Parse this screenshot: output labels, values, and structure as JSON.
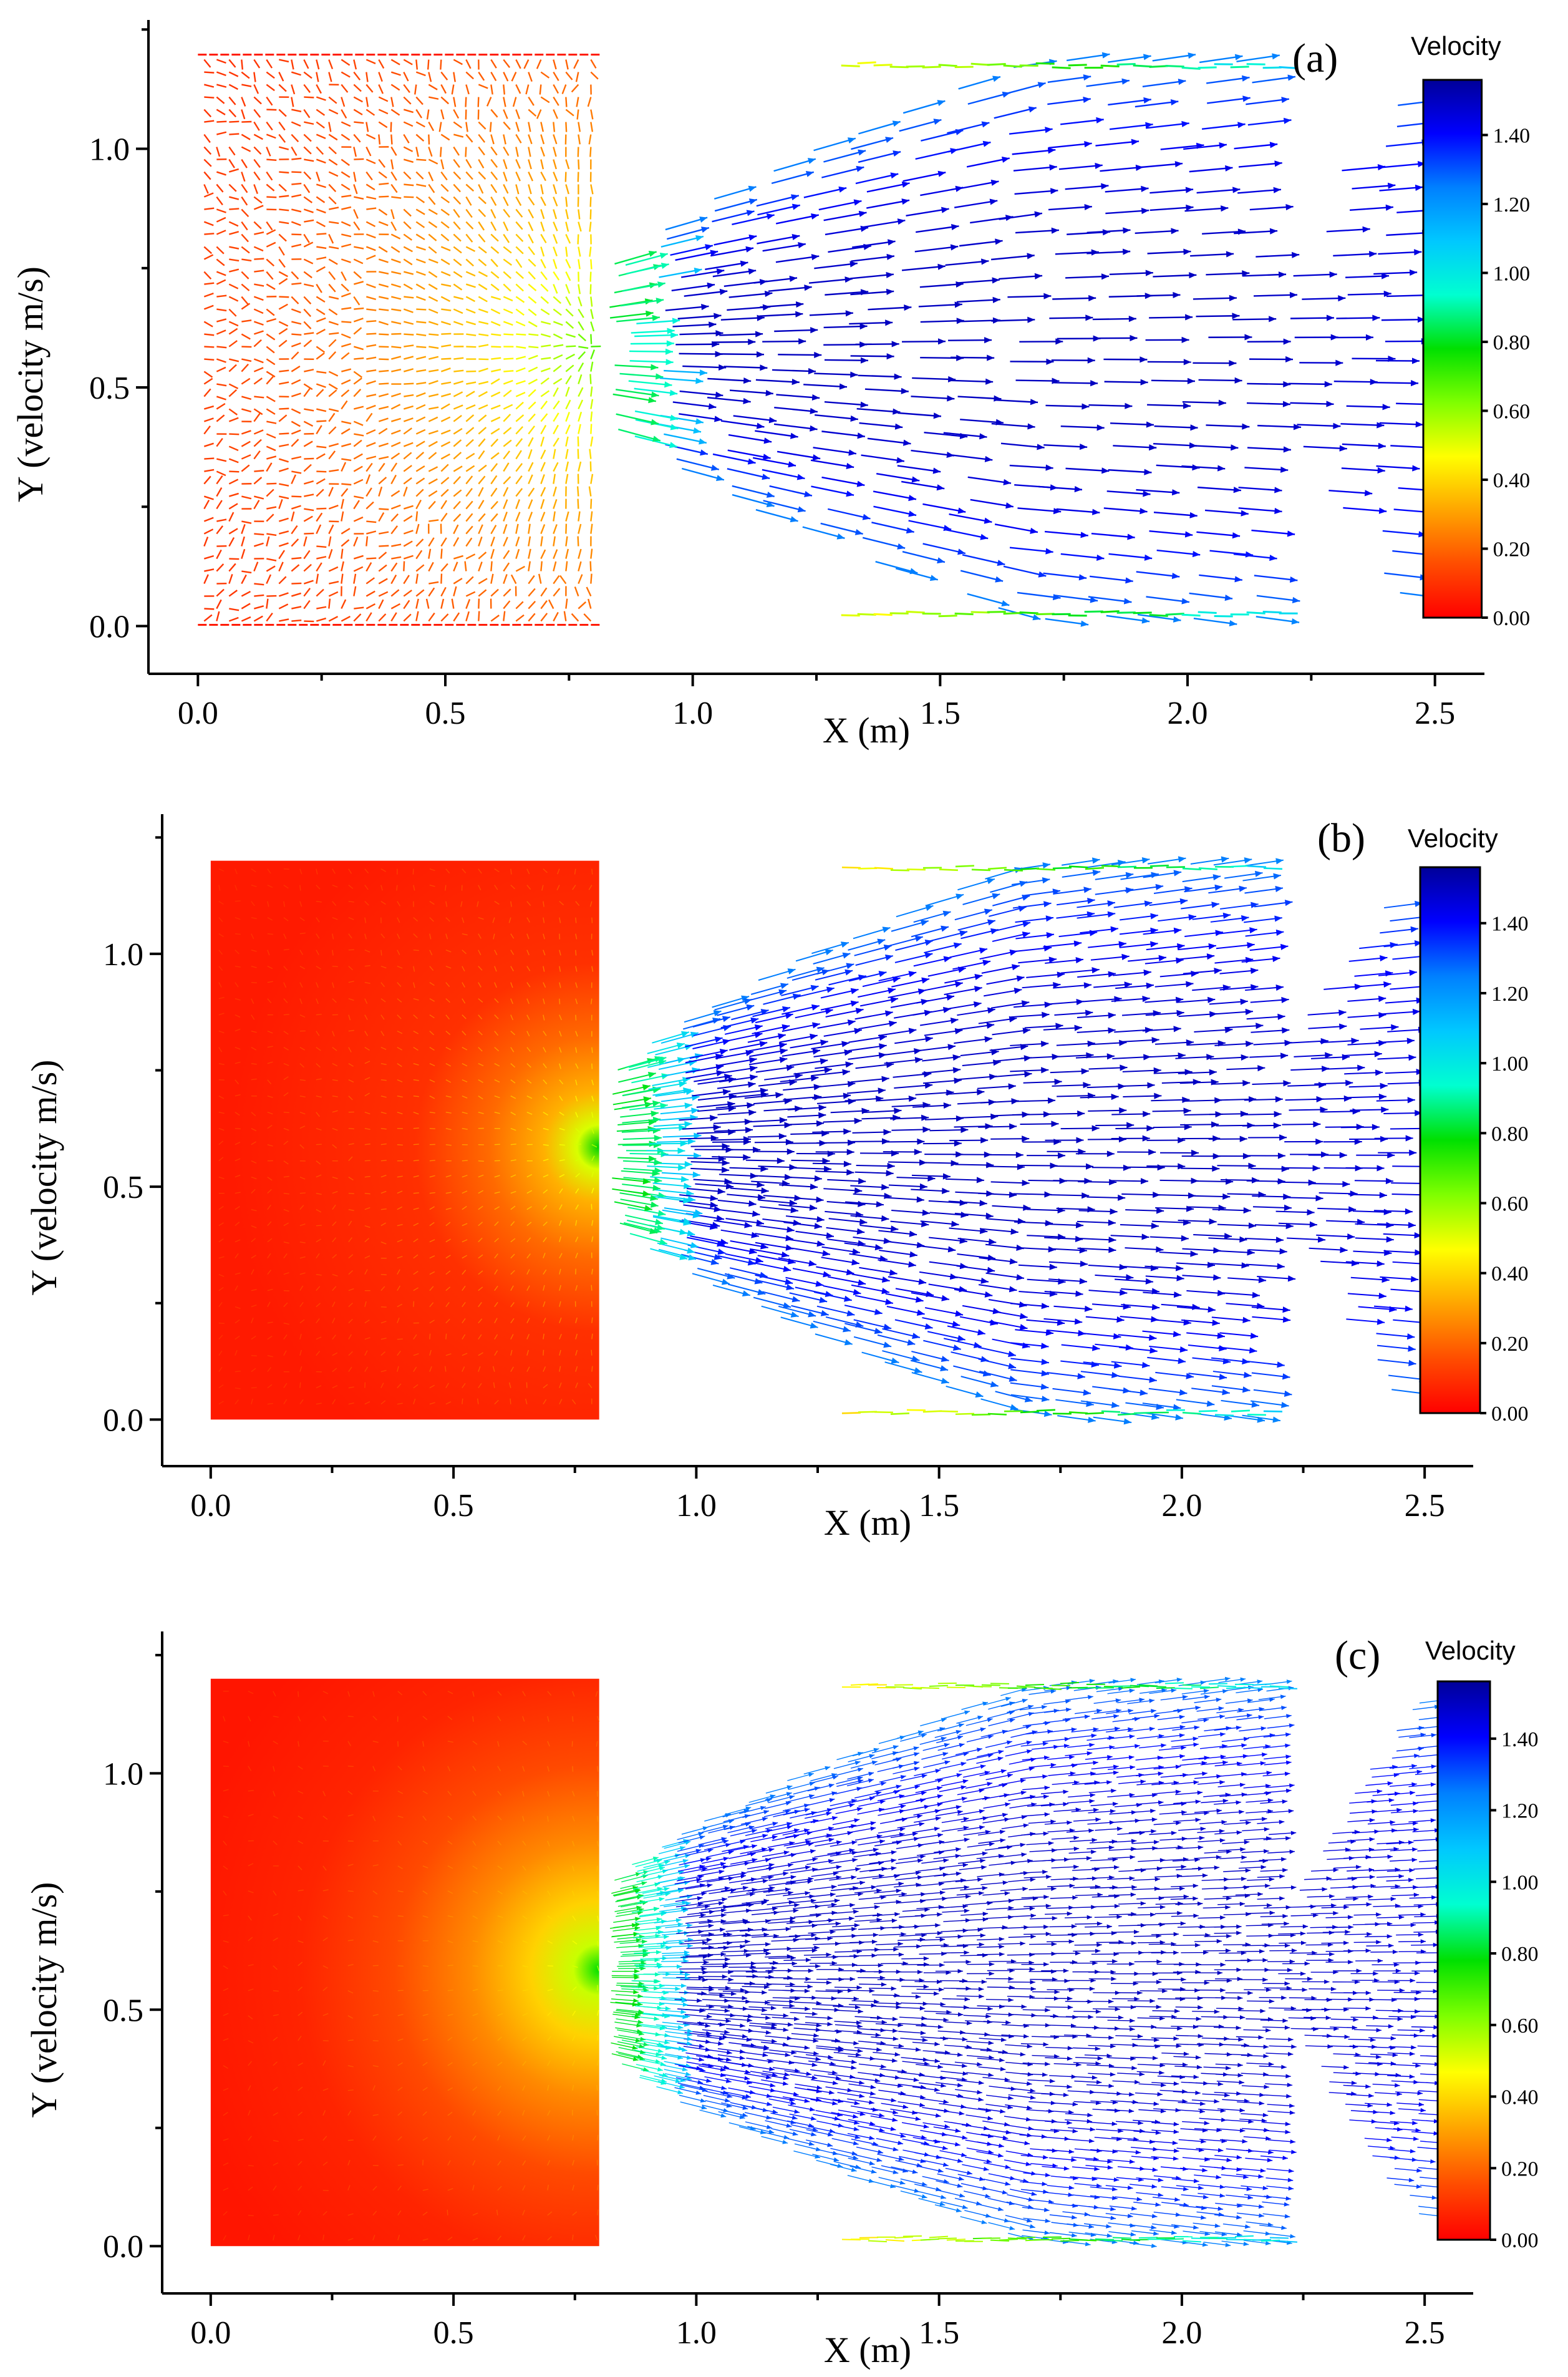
{
  "figure": {
    "colors": {
      "scale": [
        "#ff0000",
        "#ff4d00",
        "#ffa500",
        "#ffff00",
        "#7fff00",
        "#00e000",
        "#00ffd0",
        "#00c8ff",
        "#0080ff",
        "#0000ff",
        "#000099"
      ],
      "axis": "#000000"
    }
  },
  "chart_data": [
    {
      "type": "vector-field",
      "panel_label": "(a)",
      "xlabel": "X (m)",
      "ylabel": "Y (velocity m/s)",
      "xlim": [
        -0.1,
        2.6
      ],
      "ylim": [
        -0.1,
        1.27
      ],
      "xticks": [
        "0.0",
        "0.5",
        "1.0",
        "1.5",
        "2.0",
        "2.5"
      ],
      "yticks": [
        "0.0",
        "0.5",
        "1.0"
      ],
      "colorbar": {
        "title": "Velocity",
        "ticks": [
          "0.00",
          "0.20",
          "0.40",
          "0.60",
          "0.80",
          "1.00",
          "1.20",
          "1.40"
        ],
        "range": [
          0,
          1.56
        ]
      },
      "regions": {
        "reservoir": {
          "x": [
            0,
            0.8
          ],
          "y": [
            0,
            1.2
          ]
        },
        "outlet": {
          "x": 0.8,
          "y": [
            0.45,
            0.72
          ]
        },
        "spread_end_x": 2.45,
        "wall_y": [
          0.02,
          1.18
        ]
      },
      "arrow_density": "sparse"
    },
    {
      "type": "vector-field",
      "panel_label": "(b)",
      "xlabel": "X (m)",
      "ylabel": "Y (velocity m/s)",
      "xlim": [
        -0.1,
        2.6
      ],
      "ylim": [
        -0.1,
        1.3
      ],
      "xticks": [
        "0.0",
        "0.5",
        "1.0",
        "1.5",
        "2.0",
        "2.5"
      ],
      "yticks": [
        "0.0",
        "0.5",
        "1.0"
      ],
      "colorbar": {
        "title": "Velocity",
        "ticks": [
          "0.00",
          "0.20",
          "0.40",
          "0.60",
          "0.80",
          "1.00",
          "1.20",
          "1.40"
        ],
        "range": [
          0,
          1.56
        ]
      },
      "regions": {
        "reservoir": {
          "x": [
            0,
            0.8
          ],
          "y": [
            0,
            1.2
          ]
        },
        "outlet": {
          "x": 0.8,
          "y": [
            0.45,
            0.72
          ]
        },
        "spread_end_x": 2.45,
        "wall_y": [
          0.01,
          1.19
        ]
      },
      "arrow_density": "medium"
    },
    {
      "type": "vector-field",
      "panel_label": "(c)",
      "xlabel": "X (m)",
      "ylabel": "Y (velocity m/s)",
      "xlim": [
        -0.1,
        2.6
      ],
      "ylim": [
        -0.1,
        1.3
      ],
      "xticks": [
        "0.0",
        "0.5",
        "1.0",
        "1.5",
        "2.0",
        "2.5"
      ],
      "yticks": [
        "0.0",
        "0.5",
        "1.0"
      ],
      "colorbar": {
        "title": "Velocity",
        "ticks": [
          "0.00",
          "0.20",
          "0.40",
          "0.60",
          "0.80",
          "1.00",
          "1.20",
          "1.40"
        ],
        "range": [
          0,
          1.56
        ]
      },
      "regions": {
        "reservoir": {
          "x": [
            0,
            0.8
          ],
          "y": [
            0,
            1.2
          ]
        },
        "outlet": {
          "x": 0.8,
          "y": [
            0.42,
            0.75
          ]
        },
        "spread_end_x": 2.5,
        "wall_y": [
          0.01,
          1.19
        ]
      },
      "arrow_density": "dense"
    }
  ]
}
